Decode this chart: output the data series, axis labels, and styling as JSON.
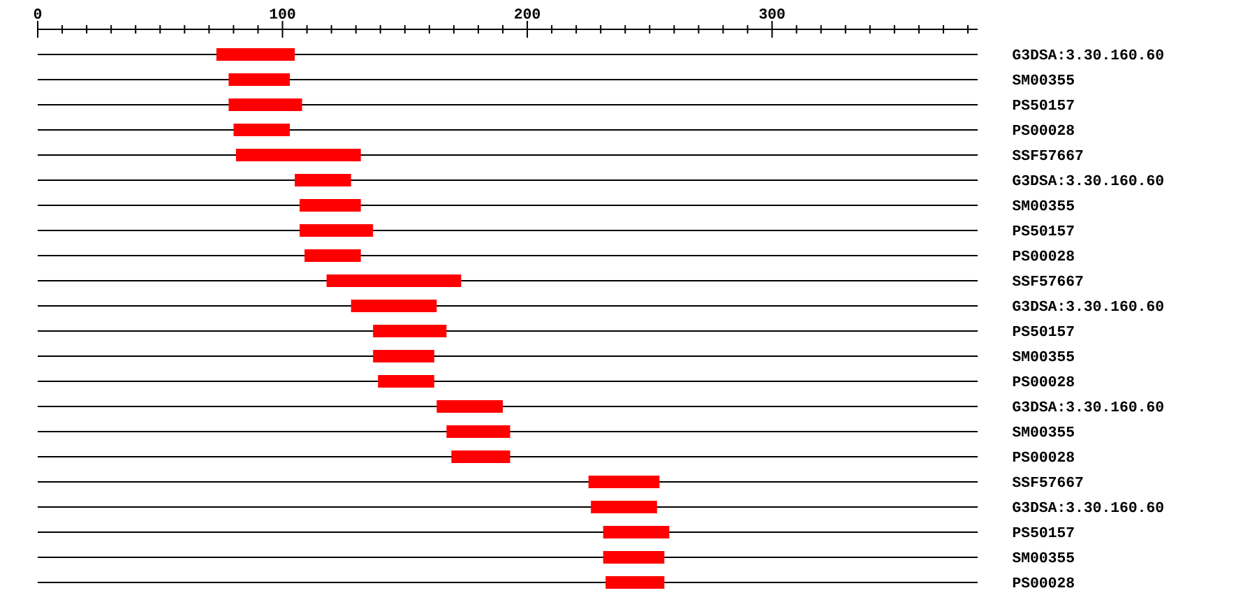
{
  "chart_data": {
    "type": "bar",
    "orientation": "horizontal",
    "color": "#ff0000",
    "grid": "y",
    "categories": [
      "G3DSA:3.30.160.60",
      "SM00355",
      "PS50157",
      "PS00028",
      "SSF57667",
      "G3DSA:3.30.160.60",
      "SM00355",
      "PS50157",
      "PS00028",
      "SSF57667",
      "G3DSA:3.30.160.60",
      "PS50157",
      "SM00355",
      "PS00028",
      "G3DSA:3.30.160.60",
      "SM00355",
      "PS00028",
      "SSF57667",
      "G3DSA:3.30.160.60",
      "PS50157",
      "SM00355",
      "PS00028"
    ],
    "base": [
      73,
      78,
      78,
      80,
      81,
      105,
      107,
      107,
      109,
      118,
      128,
      137,
      137,
      139,
      163,
      167,
      169,
      225,
      226,
      231,
      231,
      232
    ],
    "values": [
      32,
      25,
      30,
      23,
      51,
      23,
      25,
      30,
      23,
      55,
      35,
      30,
      25,
      23,
      27,
      26,
      24,
      29,
      27,
      27,
      25,
      24
    ],
    "xlim": [
      0,
      384
    ],
    "xticks": [
      0,
      {
        "value": 10,
        "label": null
      },
      {
        "value": 20,
        "label": null
      },
      {
        "value": 30,
        "label": null
      },
      {
        "value": 40,
        "label": null
      },
      {
        "value": 50,
        "label": null
      },
      {
        "value": 60,
        "label": null
      },
      {
        "value": 70,
        "label": null
      },
      {
        "value": 80,
        "label": null
      },
      {
        "value": 90,
        "label": null
      },
      100,
      {
        "value": 110,
        "label": null
      },
      {
        "value": 120,
        "label": null
      },
      {
        "value": 130,
        "label": null
      },
      {
        "value": 140,
        "label": null
      },
      {
        "value": 150,
        "label": null
      },
      {
        "value": 160,
        "label": null
      },
      {
        "value": 170,
        "label": null
      },
      {
        "value": 180,
        "label": null
      },
      {
        "value": 190,
        "label": null
      },
      200,
      {
        "value": 210,
        "label": null
      },
      {
        "value": 220,
        "label": null
      },
      {
        "value": 230,
        "label": null
      },
      {
        "value": 240,
        "label": null
      },
      {
        "value": 250,
        "label": null
      },
      {
        "value": 260,
        "label": null
      },
      {
        "value": 270,
        "label": null
      },
      {
        "value": 280,
        "label": null
      },
      {
        "value": 290,
        "label": null
      },
      300,
      {
        "value": 310,
        "label": null
      },
      {
        "value": 320,
        "label": null
      },
      {
        "value": 330,
        "label": null
      },
      {
        "value": 340,
        "label": null
      },
      {
        "value": 350,
        "label": null
      },
      {
        "value": 360,
        "label": null
      },
      {
        "value": 370,
        "label": null
      },
      {
        "value": 380,
        "label": null
      }
    ]
  }
}
